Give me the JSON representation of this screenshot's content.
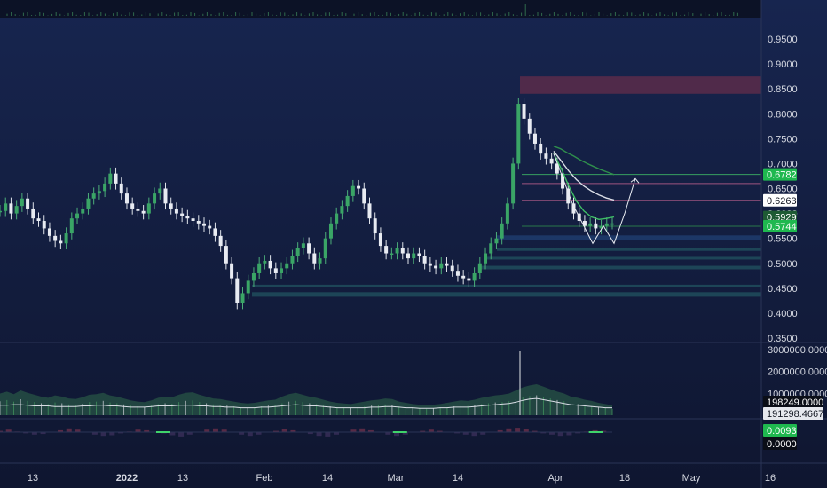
{
  "chart_data": {
    "type": "line",
    "price_axis": {
      "ticks": [
        "0.9500",
        "0.9000",
        "0.8500",
        "0.8000",
        "0.7500",
        "0.7000",
        "0.6500",
        "0.6000",
        "0.5500",
        "0.5000",
        "0.4500",
        "0.4000",
        "0.3500"
      ],
      "range": [
        0.35,
        0.97
      ]
    },
    "volume_axis": {
      "ticks": [
        "3000000.0000",
        "2000000.0000",
        "1000000.0000"
      ],
      "range": [
        0,
        3500000
      ]
    },
    "x_ticks": [
      {
        "label": "13",
        "bold": false
      },
      {
        "label": "2022",
        "bold": true
      },
      {
        "label": "13",
        "bold": false
      },
      {
        "label": "Feb",
        "bold": false
      },
      {
        "label": "14",
        "bold": false
      },
      {
        "label": "Mar",
        "bold": false
      },
      {
        "label": "14",
        "bold": false
      },
      {
        "label": "Apr",
        "bold": false
      },
      {
        "label": "18",
        "bold": false
      },
      {
        "label": "May",
        "bold": false
      },
      {
        "label": "16",
        "bold": false
      }
    ],
    "price_series": [
      0.605,
      0.62,
      0.6,
      0.615,
      0.63,
      0.61,
      0.59,
      0.585,
      0.57,
      0.555,
      0.545,
      0.54,
      0.56,
      0.59,
      0.6,
      0.61,
      0.63,
      0.64,
      0.645,
      0.66,
      0.68,
      0.66,
      0.64,
      0.62,
      0.61,
      0.605,
      0.6,
      0.62,
      0.64,
      0.65,
      0.62,
      0.61,
      0.6,
      0.595,
      0.59,
      0.585,
      0.58,
      0.575,
      0.57,
      0.555,
      0.535,
      0.5,
      0.47,
      0.42,
      0.44,
      0.465,
      0.48,
      0.5,
      0.505,
      0.49,
      0.48,
      0.49,
      0.5,
      0.515,
      0.53,
      0.54,
      0.52,
      0.5,
      0.51,
      0.55,
      0.58,
      0.6,
      0.615,
      0.635,
      0.655,
      0.65,
      0.62,
      0.59,
      0.56,
      0.535,
      0.52,
      0.52,
      0.53,
      0.52,
      0.51,
      0.52,
      0.515,
      0.5,
      0.495,
      0.49,
      0.5,
      0.495,
      0.485,
      0.475,
      0.47,
      0.465,
      0.48,
      0.5,
      0.52,
      0.54,
      0.55,
      0.58,
      0.62,
      0.7,
      0.82,
      0.79,
      0.76,
      0.74,
      0.72,
      0.71,
      0.7,
      0.68,
      0.65,
      0.62,
      0.6,
      0.585,
      0.575,
      0.58,
      0.57,
      0.575,
      0.58,
      0.58
    ],
    "moving_averages": [
      {
        "color": "#2f8f4c",
        "values": [
          0.735,
          0.73,
          0.722,
          0.715,
          0.707,
          0.7,
          0.694,
          0.688,
          0.683,
          0.678
        ]
      },
      {
        "color": "#dadde6",
        "values": [
          0.725,
          0.705,
          0.685,
          0.668,
          0.655,
          0.645,
          0.637,
          0.631,
          0.627
        ]
      },
      {
        "color": "#3fbf66",
        "values": [
          0.72,
          0.69,
          0.655,
          0.625,
          0.605,
          0.593,
          0.588,
          0.59,
          0.593
        ]
      }
    ],
    "projection_path": [
      [
        0.56,
        0
      ],
      [
        0.54,
        1
      ],
      [
        0.6,
        2
      ],
      [
        0.54,
        3
      ],
      [
        0.6,
        4
      ],
      [
        0.66,
        5
      ]
    ],
    "zones": [
      {
        "kind": "supply",
        "low": 0.84,
        "high": 0.875,
        "color": "#5a2b4a"
      },
      {
        "kind": "demand",
        "low": 0.546,
        "high": 0.556,
        "color": "#1e3a6a"
      },
      {
        "kind": "demand",
        "low": 0.525,
        "high": 0.531,
        "color": "#1f4a5a"
      },
      {
        "kind": "demand",
        "low": 0.508,
        "high": 0.513,
        "color": "#1f4a5a"
      },
      {
        "kind": "demand",
        "low": 0.488,
        "high": 0.495,
        "color": "#1f4a5a"
      },
      {
        "kind": "demand",
        "low": 0.452,
        "high": 0.457,
        "color": "#1f4a5a"
      },
      {
        "kind": "demand",
        "low": 0.433,
        "high": 0.442,
        "color": "#1f4a5a"
      }
    ],
    "level_lines": [
      {
        "value": 0.6782,
        "color": "#3fbf66"
      },
      {
        "value": 0.66,
        "color": "#c06090"
      },
      {
        "value": 0.6263,
        "color": "#c06090"
      },
      {
        "value": 0.5744,
        "color": "#2f8f4c"
      }
    ],
    "volume_profile": [
      0.35,
      0.38,
      0.34,
      0.4,
      0.36,
      0.33,
      0.3,
      0.28,
      0.32,
      0.3,
      0.27,
      0.26,
      0.29,
      0.33,
      0.34,
      0.36,
      0.32,
      0.3,
      0.27,
      0.24,
      0.22,
      0.21,
      0.24,
      0.28,
      0.3,
      0.29,
      0.33,
      0.36,
      0.37,
      0.33,
      0.3,
      0.27,
      0.26,
      0.24,
      0.22,
      0.2,
      0.19,
      0.2,
      0.22,
      0.24,
      0.25,
      0.3,
      0.34,
      0.36,
      0.33,
      0.3,
      0.28,
      0.25,
      0.22,
      0.2,
      0.19,
      0.18,
      0.2,
      0.22,
      0.24,
      0.25,
      0.27,
      0.26,
      0.22,
      0.2,
      0.18,
      0.17,
      0.16,
      0.17,
      0.18,
      0.2,
      0.22,
      0.24,
      0.23,
      0.25,
      0.28,
      0.3,
      0.32,
      0.33,
      0.35,
      0.4,
      0.45,
      0.48,
      0.5,
      0.46,
      0.42,
      0.38,
      0.35,
      0.3,
      0.28,
      0.25,
      0.23,
      0.2,
      0.18,
      0.16
    ],
    "volume_avg_profile": [
      0.16,
      0.16,
      0.17,
      0.17,
      0.16,
      0.15,
      0.15,
      0.15,
      0.14,
      0.14,
      0.14,
      0.14,
      0.15,
      0.15,
      0.16,
      0.16,
      0.15,
      0.15,
      0.14,
      0.13,
      0.13,
      0.13,
      0.14,
      0.15,
      0.15,
      0.15,
      0.16,
      0.16,
      0.16,
      0.15,
      0.15,
      0.14,
      0.14,
      0.13,
      0.13,
      0.12,
      0.12,
      0.12,
      0.13,
      0.13,
      0.14,
      0.15,
      0.16,
      0.17,
      0.16,
      0.15,
      0.15,
      0.14,
      0.13,
      0.12,
      0.12,
      0.12,
      0.12,
      0.12,
      0.13,
      0.13,
      0.14,
      0.14,
      0.13,
      0.12,
      0.12,
      0.11,
      0.11,
      0.11,
      0.12,
      0.12,
      0.13,
      0.13,
      0.13,
      0.14,
      0.15,
      0.16,
      0.17,
      0.18,
      0.19,
      0.21,
      0.24,
      0.26,
      0.27,
      0.25,
      0.23,
      0.21,
      0.19,
      0.17,
      0.16,
      0.15,
      0.14,
      0.13,
      0.12,
      0.12
    ],
    "oscillator_profile": [
      0.1,
      0.2,
      0.05,
      -0.1,
      -0.2,
      -0.15,
      0.0,
      0.15,
      0.3,
      0.2,
      0.0,
      -0.2,
      -0.3,
      -0.25,
      -0.1,
      0.05,
      0.2,
      0.15,
      0.0,
      -0.1,
      -0.25,
      -0.35,
      -0.2,
      0.0,
      0.2,
      0.3,
      0.2,
      0.0,
      -0.2,
      -0.3,
      -0.2,
      0.0,
      0.1,
      0.25,
      0.15,
      0.0,
      -0.15,
      -0.3,
      -0.35,
      -0.2,
      0.0,
      0.2,
      0.3,
      0.15,
      0.0,
      -0.2,
      -0.3,
      -0.2,
      0.0,
      0.1,
      0.2,
      0.1,
      0.0,
      -0.1,
      -0.2,
      -0.3,
      -0.2,
      0.0,
      0.15,
      0.3,
      0.35,
      0.25,
      0.1,
      -0.1,
      -0.2,
      -0.3,
      -0.25,
      -0.1,
      0.05,
      0.15,
      0.1,
      0.0
    ],
    "osc_markers": [
      0.2,
      0.49,
      0.73
    ],
    "badges": {
      "price_current": {
        "text": "0.6782",
        "bg": "#1fb84f",
        "fg": "#ffffff",
        "value": 0.6782
      },
      "price_level": {
        "text": "0.6263",
        "bg": "#ffffff",
        "fg": "#131722",
        "value": 0.6263
      },
      "price_ma": {
        "text": "0.5929",
        "bg": "#1e5a34",
        "fg": "#ffffff",
        "value": 0.5929
      },
      "price_last": {
        "text": "0.5744",
        "bg": "#1fb84f",
        "fg": "#ffffff",
        "value": 0.5744
      },
      "volume": {
        "text": "198249.0000",
        "bg": "#0b0e17",
        "fg": "#ffffff"
      },
      "volume_ma": {
        "text": "191298.4667",
        "bg": "#e6e8ee",
        "fg": "#131722"
      },
      "oscillator_value": {
        "text": "0.0093",
        "bg": "#1fb84f",
        "fg": "#ffffff"
      },
      "oscillator_zero": {
        "text": "0.0000",
        "bg": "#0b0e17",
        "fg": "#ffffff"
      }
    }
  }
}
